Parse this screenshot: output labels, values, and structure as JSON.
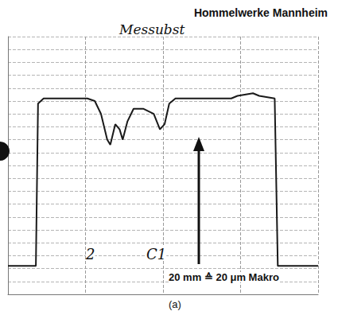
{
  "chart_data": {
    "type": "line",
    "title": "Hommelwerke Mannheim",
    "annotations": [
      "Messubst",
      "2",
      "C1",
      "20 mm ≙ 20 μm Makro",
      "(a)"
    ],
    "x": [
      0,
      9,
      9.7,
      11.5,
      25.6,
      28,
      30,
      32,
      33,
      34.6,
      36,
      37,
      38.5,
      40.5,
      43.6,
      47,
      49,
      50.5,
      52,
      54,
      72,
      74,
      79,
      81,
      86,
      87,
      100
    ],
    "values": [
      11,
      11,
      74,
      76,
      76,
      75,
      70,
      60,
      58,
      66,
      64,
      60,
      67,
      72,
      72,
      70,
      64,
      66,
      74,
      76,
      76,
      77,
      78,
      77,
      76,
      11,
      11
    ],
    "color": "#1a1a1a",
    "xlim": [
      0,
      100
    ],
    "xticks": [
      0,
      25,
      50,
      75,
      100
    ],
    "ylim": [
      0,
      100
    ],
    "yticks": [
      0,
      5,
      10,
      15,
      20,
      25,
      30,
      35,
      40,
      45,
      50,
      55,
      60,
      65,
      70,
      75,
      80,
      85,
      90,
      95,
      100
    ],
    "grid": true,
    "tick_labels": false
  }
}
